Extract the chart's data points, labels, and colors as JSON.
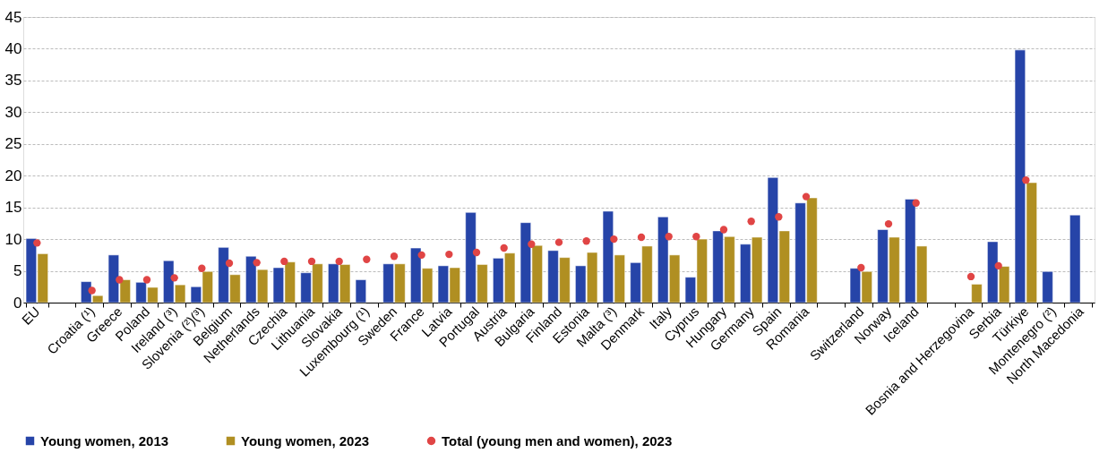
{
  "chart_data": {
    "type": "bar",
    "categories": [
      "EU",
      null,
      "Croatia (¹)",
      "Greece",
      "Poland",
      "Ireland (³)",
      "Slovenia (²)(³)",
      "Belgium",
      "Netherlands",
      "Czechia",
      "Lithuania",
      "Slovakia",
      "Luxembourg (¹)",
      "Sweden",
      "France",
      "Latvia",
      "Portugal",
      "Austria",
      "Bulgaria",
      "Finland",
      "Estonia",
      "Malta (³)",
      "Denmark",
      "Italy",
      "Cyprus",
      "Hungary",
      "Germany",
      "Spain",
      "Romania",
      null,
      "Switzerland",
      "Norway",
      "Iceland",
      null,
      "Bosnia and Herzegovina",
      "Serbia",
      "Türkiye",
      "Montenegro (²)",
      "North Macedonia"
    ],
    "series": [
      {
        "name": "Young women, 2013",
        "color": "#2644a8",
        "values": [
          10.1,
          null,
          3.3,
          7.5,
          3.2,
          6.6,
          2.5,
          8.7,
          7.3,
          5.5,
          4.7,
          6.1,
          3.6,
          6.1,
          8.6,
          5.8,
          14.2,
          7.0,
          12.6,
          8.2,
          5.8,
          14.4,
          6.3,
          13.5,
          4.0,
          11.3,
          9.2,
          19.7,
          15.7,
          null,
          5.4,
          11.5,
          16.3,
          null,
          null,
          9.6,
          39.8,
          4.9,
          13.8
        ]
      },
      {
        "name": "Young women, 2023",
        "color": "#b08f22",
        "values": [
          7.7,
          null,
          1.1,
          3.6,
          2.4,
          2.8,
          4.9,
          4.4,
          5.2,
          6.4,
          6.1,
          6.0,
          null,
          6.1,
          5.4,
          5.5,
          6.0,
          7.8,
          9.0,
          7.1,
          7.9,
          7.5,
          8.9,
          7.5,
          10.0,
          10.4,
          10.3,
          11.3,
          16.5,
          null,
          4.9,
          10.3,
          8.9,
          null,
          2.9,
          5.7,
          18.9,
          null,
          null
        ]
      },
      {
        "name": "Total (young men and women), 2023",
        "type": "scatter",
        "color": "#e04545",
        "values": [
          9.4,
          null,
          1.9,
          3.6,
          3.6,
          3.9,
          5.4,
          6.2,
          6.3,
          6.5,
          6.5,
          6.5,
          6.8,
          7.3,
          7.5,
          7.6,
          7.9,
          8.6,
          9.2,
          9.5,
          9.7,
          10.0,
          10.3,
          10.4,
          10.4,
          11.5,
          12.8,
          13.5,
          16.7,
          null,
          5.5,
          12.4,
          15.7,
          null,
          4.1,
          5.8,
          19.3,
          null,
          null
        ]
      }
    ],
    "ylim": [
      0,
      45
    ],
    "yticks": [
      0,
      5,
      10,
      15,
      20,
      25,
      30,
      35,
      40,
      45
    ],
    "grid": "y",
    "legend": "bottom",
    "marker": "circle"
  }
}
